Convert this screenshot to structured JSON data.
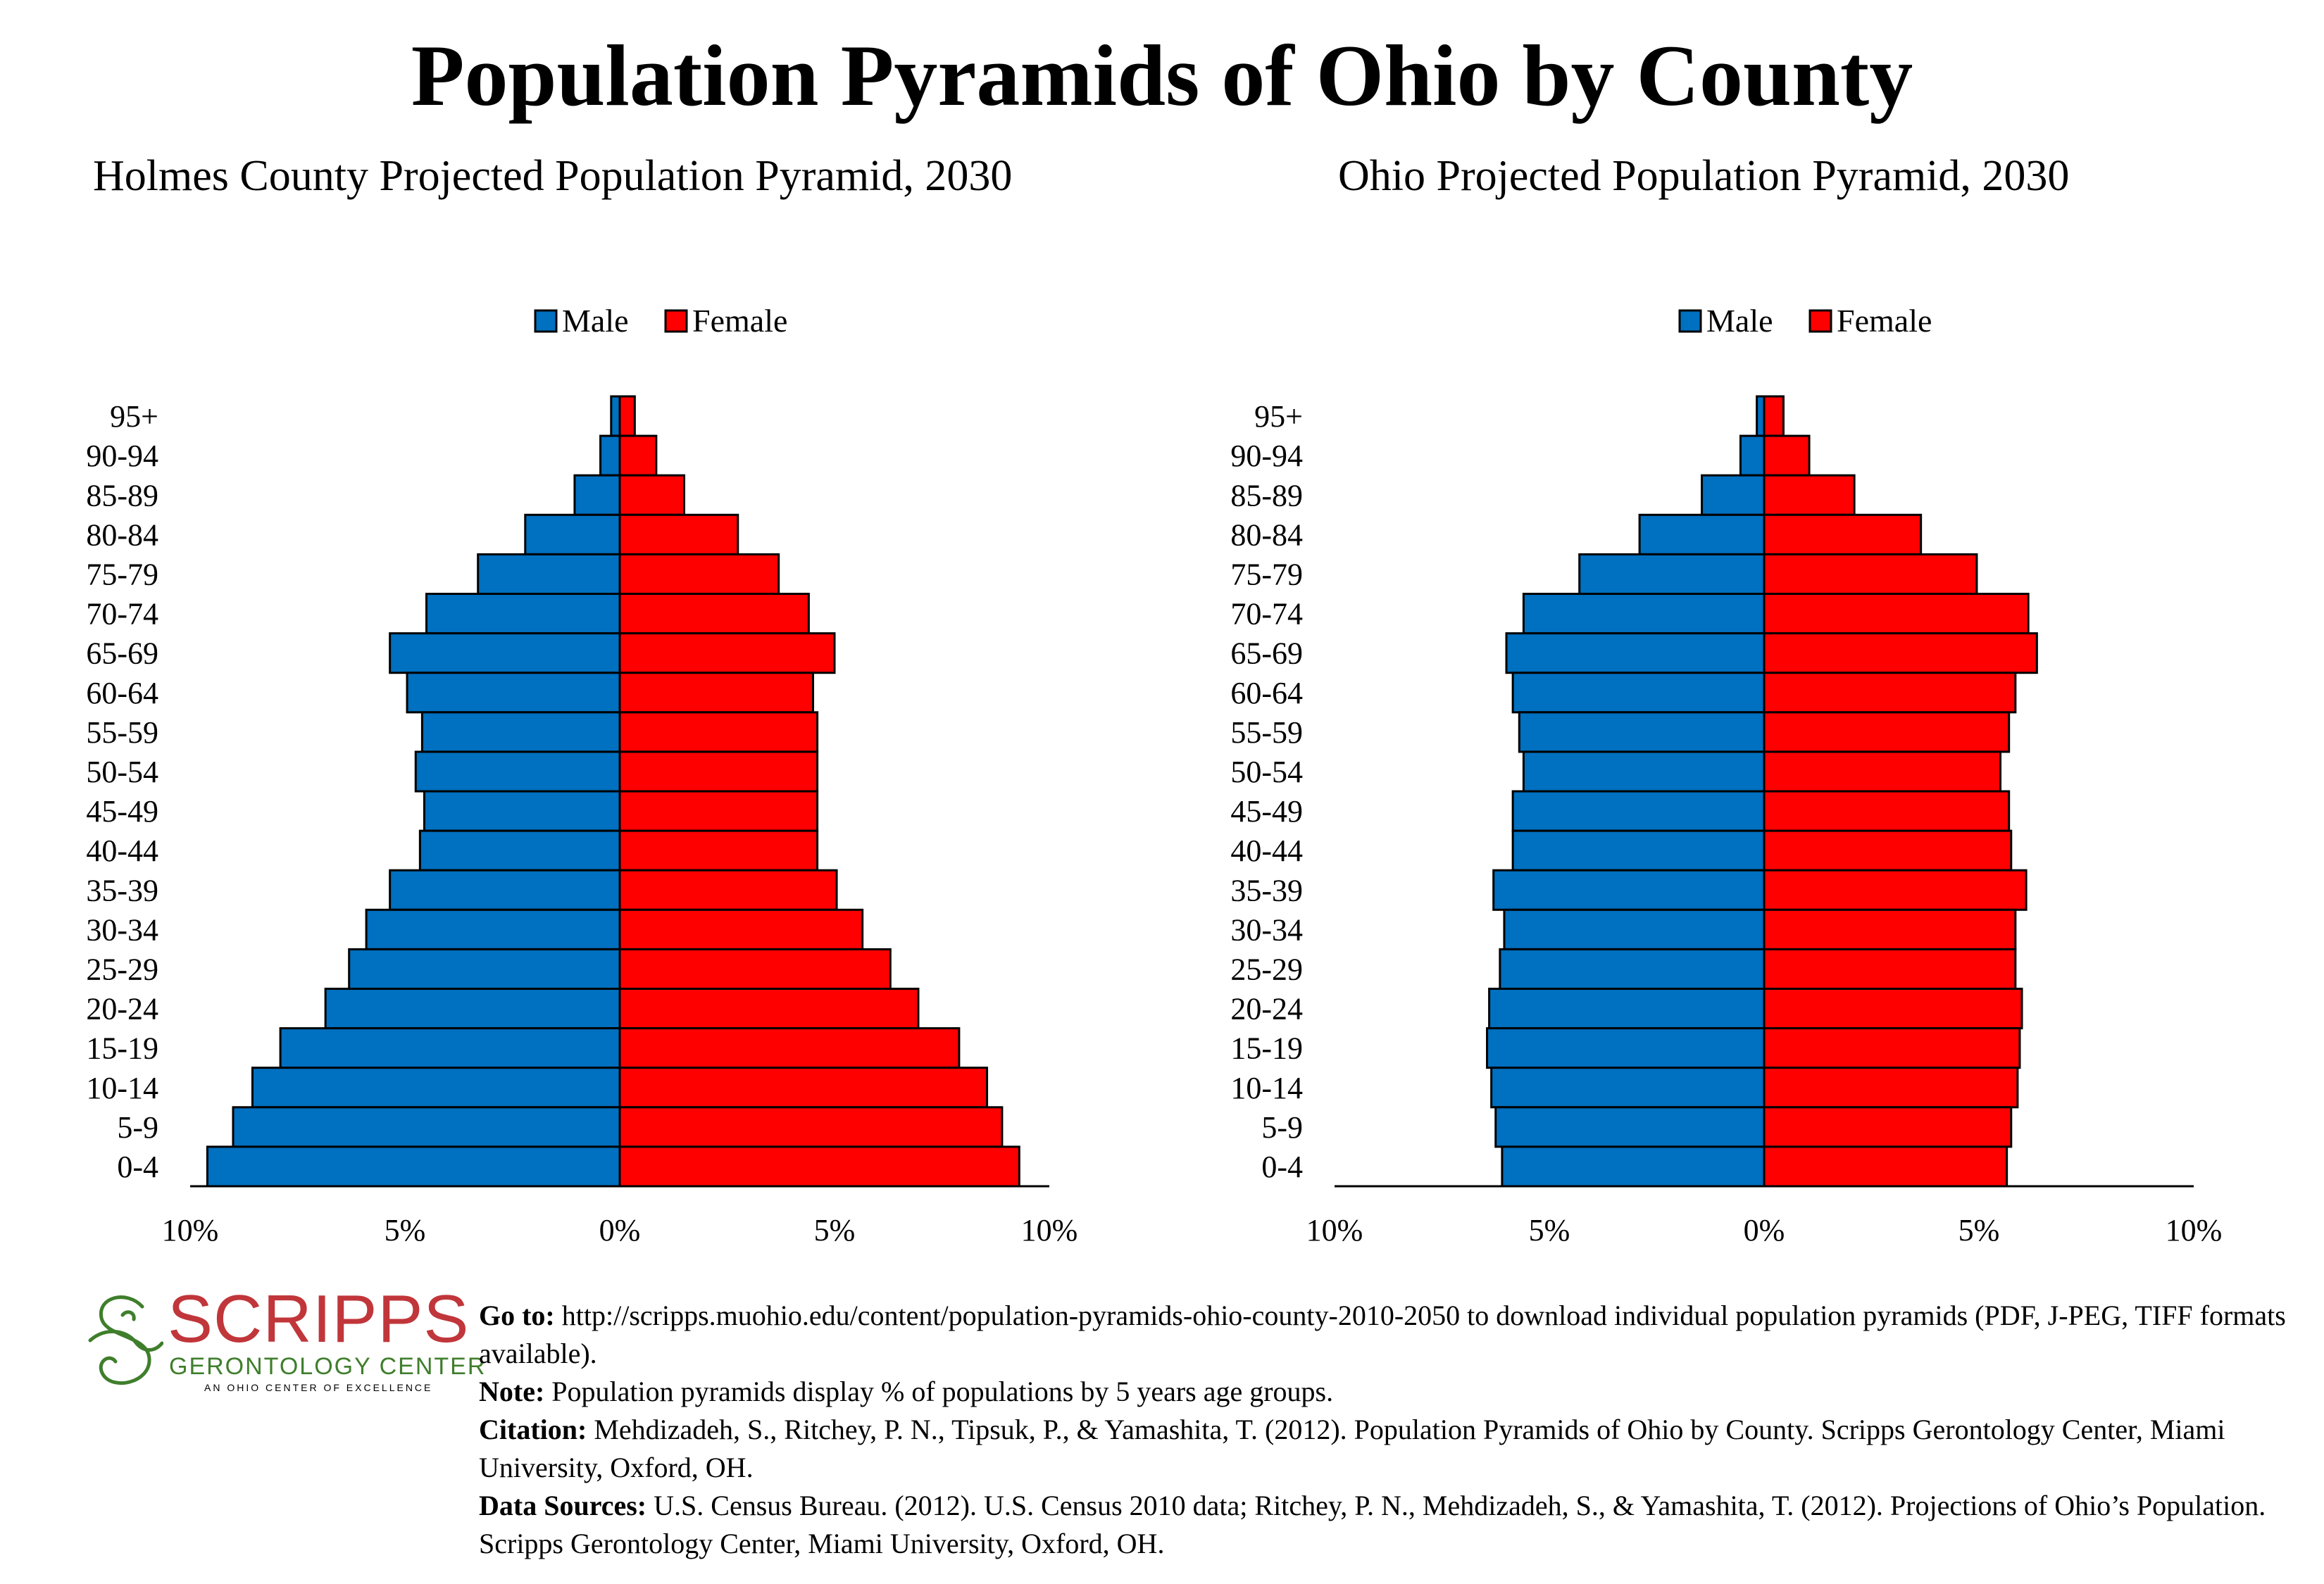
{
  "title": "Population Pyramids of Ohio by County",
  "colors": {
    "male": "#0070c0",
    "female": "#ff0000",
    "logo_red": "#c0363a",
    "logo_green": "#3f7e2c"
  },
  "legend": {
    "male": "Male",
    "female": "Female"
  },
  "chart_data": [
    {
      "type": "bar",
      "orientation": "horizontal-pyramid",
      "title": "Holmes County Projected Population Pyramid, 2030",
      "categories": [
        "95+",
        "90-94",
        "85-89",
        "80-84",
        "75-79",
        "70-74",
        "65-69",
        "60-64",
        "55-59",
        "50-54",
        "45-49",
        "40-44",
        "35-39",
        "30-34",
        "25-29",
        "20-24",
        "15-19",
        "10-14",
        "5-9",
        "0-4"
      ],
      "series": [
        {
          "name": "Male",
          "values": [
            0.2,
            0.45,
            1.05,
            2.2,
            3.3,
            4.5,
            5.35,
            4.95,
            4.6,
            4.75,
            4.55,
            4.65,
            5.35,
            5.9,
            6.3,
            6.85,
            7.9,
            8.55,
            9.0,
            9.6
          ]
        },
        {
          "name": "Female",
          "values": [
            0.35,
            0.85,
            1.5,
            2.75,
            3.7,
            4.4,
            5.0,
            4.5,
            4.6,
            4.6,
            4.6,
            4.6,
            5.05,
            5.65,
            6.3,
            6.95,
            7.9,
            8.55,
            8.9,
            9.3
          ]
        }
      ],
      "xlim": [
        -10,
        10
      ],
      "xticks": [
        "10%",
        "5%",
        "0%",
        "5%",
        "10%"
      ],
      "xlabel": "",
      "ylabel": "",
      "legend": "top-center",
      "grid": false
    },
    {
      "type": "bar",
      "orientation": "horizontal-pyramid",
      "title": "Ohio Projected Population Pyramid, 2030",
      "categories": [
        "95+",
        "90-94",
        "85-89",
        "80-84",
        "75-79",
        "70-74",
        "65-69",
        "60-64",
        "55-59",
        "50-54",
        "45-49",
        "40-44",
        "35-39",
        "30-34",
        "25-29",
        "20-24",
        "15-19",
        "10-14",
        "5-9",
        "0-4"
      ],
      "series": [
        {
          "name": "Male",
          "values": [
            0.17,
            0.55,
            1.45,
            2.9,
            4.3,
            5.6,
            6.0,
            5.85,
            5.7,
            5.6,
            5.85,
            5.85,
            6.3,
            6.05,
            6.15,
            6.4,
            6.45,
            6.35,
            6.25,
            6.1
          ]
        },
        {
          "name": "Female",
          "values": [
            0.45,
            1.05,
            2.1,
            3.65,
            4.95,
            6.15,
            6.35,
            5.85,
            5.7,
            5.5,
            5.7,
            5.75,
            6.1,
            5.85,
            5.85,
            6.0,
            5.95,
            5.9,
            5.75,
            5.65
          ]
        }
      ],
      "xlim": [
        -10,
        10
      ],
      "xticks": [
        "10%",
        "5%",
        "0%",
        "5%",
        "10%"
      ],
      "xlabel": "",
      "ylabel": "",
      "legend": "top-center",
      "grid": false
    }
  ],
  "logo": {
    "word": "SCRIPPS",
    "sub": "GERONTOLOGY CENTER",
    "tagline": "AN OHIO CENTER OF EXCELLENCE"
  },
  "notes": {
    "goto_label": "Go to:",
    "goto_text": " http://scripps.muohio.edu/content/population-pyramids-ohio-county-2010-2050 to download individual population pyramids (PDF, J-PEG, TIFF formats available).",
    "note_label": "Note:",
    "note_text": " Population pyramids display % of populations by 5 years age groups.",
    "citation_label": "Citation:",
    "citation_text": " Mehdizadeh, S., Ritchey, P. N., Tipsuk, P., & Yamashita, T. (2012). Population Pyramids of Ohio by County. Scripps Gerontology Center, Miami University, Oxford, OH.",
    "sources_label": "Data Sources:",
    "sources_text": " U.S. Census Bureau. (2012). U.S. Census 2010 data; Ritchey, P. N., Mehdizadeh, S., & Yamashita, T. (2012). Projections of Ohio’s Population. Scripps Gerontology Center, Miami University, Oxford, OH."
  }
}
